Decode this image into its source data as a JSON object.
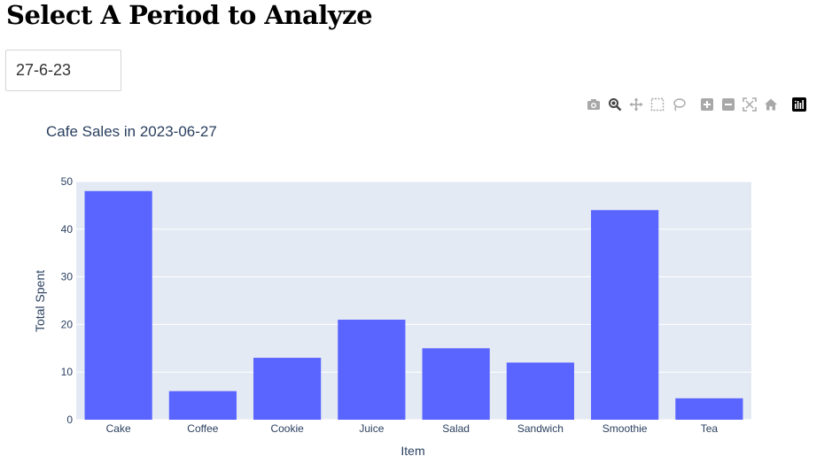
{
  "page": {
    "heading": "Select A Period to Analyze"
  },
  "period_select": {
    "value": "27-6-23"
  },
  "modebar": {
    "icons": [
      "camera-icon",
      "zoom-icon",
      "pan-icon",
      "box-select-icon",
      "lasso-select-icon",
      "zoom-in-icon",
      "zoom-out-icon",
      "autoscale-icon",
      "reset-axes-icon",
      "plotly-logo-icon"
    ],
    "icon_color": "#a8a8a8"
  },
  "chart_data": {
    "type": "bar",
    "title": "Cafe Sales in 2023-06-27",
    "xlabel": "Item",
    "ylabel": "Total Spent",
    "categories": [
      "Cake",
      "Coffee",
      "Cookie",
      "Juice",
      "Salad",
      "Sandwich",
      "Smoothie",
      "Tea"
    ],
    "values": [
      48,
      6,
      13,
      21,
      15,
      12,
      44,
      4.5
    ],
    "ylim": [
      0,
      50
    ],
    "yticks": [
      0,
      10,
      20,
      30,
      40,
      50
    ],
    "grid": true,
    "bar_color": "#5a64ff",
    "plot_background": "#e4eaf4"
  }
}
